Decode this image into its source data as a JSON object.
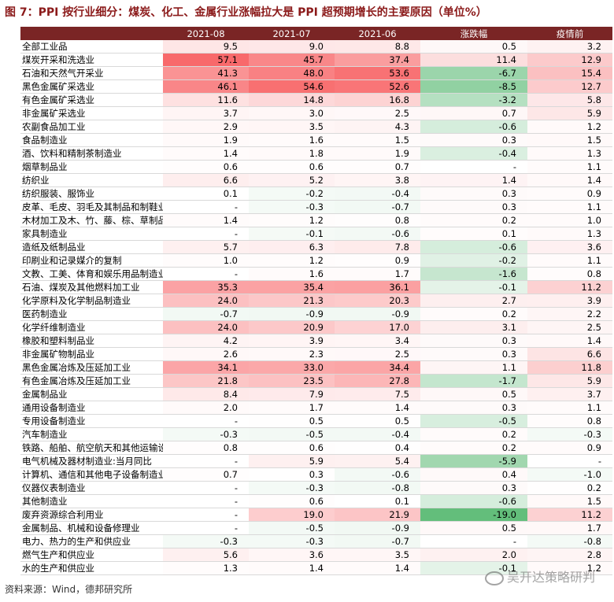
{
  "title": "图 7：PPI 按行业细分：煤炭、化工、金属行业涨幅拉大是 PPI 超预期增长的主要原因（单位%）",
  "source_note": "资料来源：Wind，德邦研究所",
  "watermark": "吴开达策略研判",
  "chart_data": {
    "type": "table",
    "columns": [
      "",
      "2021-08",
      "2021-07",
      "2021-06",
      "涨跌幅",
      "疫情前"
    ],
    "rows": [
      [
        "全部工业品",
        "9.5",
        "9.0",
        "8.8",
        "0.5",
        "3.2"
      ],
      [
        "煤炭开采和洗选业",
        "57.1",
        "45.7",
        "37.4",
        "11.4",
        "12.9"
      ],
      [
        "石油和天然气开采业",
        "41.3",
        "48.0",
        "53.6",
        "-6.7",
        "15.4"
      ],
      [
        "黑色金属矿采选业",
        "46.1",
        "54.6",
        "52.6",
        "-8.5",
        "12.7"
      ],
      [
        "有色金属矿采选业",
        "11.6",
        "14.8",
        "16.8",
        "-3.2",
        "5.8"
      ],
      [
        "非金属矿采选业",
        "3.7",
        "3.0",
        "2.5",
        "0.7",
        "5.9"
      ],
      [
        "农副食品加工业",
        "2.9",
        "3.5",
        "4.3",
        "-0.6",
        "1.2"
      ],
      [
        "食品制造业",
        "1.9",
        "1.6",
        "1.5",
        "0.3",
        "1.5"
      ],
      [
        "酒、饮料和精制茶制造业",
        "1.4",
        "1.8",
        "1.9",
        "-0.4",
        "1.3"
      ],
      [
        "烟草制品业",
        "0.6",
        "0.6",
        "0.7",
        "-",
        "1.1"
      ],
      [
        "纺织业",
        "6.6",
        "5.2",
        "3.8",
        "1.4",
        "1.4"
      ],
      [
        "纺织服装、服饰业",
        "0.1",
        "-0.2",
        "-0.4",
        "0.3",
        "0.9"
      ],
      [
        "皮革、毛皮、羽毛及其制品和制鞋业",
        "-",
        "-0.3",
        "-0.7",
        "0.3",
        "1.1"
      ],
      [
        "木材加工及木、竹、藤、棕、草制品业",
        "1.4",
        "1.2",
        "0.8",
        "0.2",
        "1.0"
      ],
      [
        "家具制造业",
        "-",
        "-0.1",
        "-0.6",
        "0.1",
        "1.3"
      ],
      [
        "造纸及纸制品业",
        "5.7",
        "6.3",
        "7.8",
        "-0.6",
        "3.6"
      ],
      [
        "印刷业和记录媒介的复制",
        "1.0",
        "1.2",
        "0.9",
        "-0.2",
        "1.1"
      ],
      [
        "文教、工美、体育和娱乐用品制造业",
        "-",
        "1.6",
        "1.7",
        "-1.6",
        "0.8"
      ],
      [
        "石油、煤炭及其他燃料加工业",
        "35.3",
        "35.4",
        "36.1",
        "-0.1",
        "11.2"
      ],
      [
        "化学原料及化学制品制造业",
        "24.0",
        "21.3",
        "20.3",
        "2.7",
        "3.9"
      ],
      [
        "医药制造业",
        "-0.7",
        "-0.9",
        "-0.9",
        "0.2",
        "2.2"
      ],
      [
        "化学纤维制造业",
        "24.0",
        "20.9",
        "17.0",
        "3.1",
        "2.5"
      ],
      [
        "橡胶和塑料制品业",
        "4.2",
        "3.9",
        "3.4",
        "0.3",
        "1.4"
      ],
      [
        "非金属矿物制品业",
        "2.6",
        "2.3",
        "2.5",
        "0.3",
        "6.6"
      ],
      [
        "黑色金属冶炼及压延加工业",
        "34.1",
        "33.0",
        "34.4",
        "1.1",
        "11.8"
      ],
      [
        "有色金属冶炼及压延加工业",
        "21.8",
        "23.5",
        "27.8",
        "-1.7",
        "5.9"
      ],
      [
        "金属制品业",
        "8.4",
        "7.9",
        "7.5",
        "0.5",
        "3.7"
      ],
      [
        "通用设备制造业",
        "2.0",
        "1.7",
        "1.4",
        "0.3",
        "1.1"
      ],
      [
        "专用设备制造业",
        "-",
        "0.5",
        "0.5",
        "-0.5",
        "0.8"
      ],
      [
        "汽车制造业",
        "-0.3",
        "-0.5",
        "-0.4",
        "0.2",
        "-0.3"
      ],
      [
        "铁路、船舶、航空航天和其他运输设备制造业",
        "0.8",
        "0.6",
        "0.4",
        "0.2",
        "0.9"
      ],
      [
        "电气机械及器材制造业:当月同比",
        "-",
        "5.9",
        "5.4",
        "-5.9",
        "-"
      ],
      [
        "计算机、通信和其他电子设备制造业",
        "0.7",
        "0.3",
        "-0.6",
        "0.4",
        "-1.0"
      ],
      [
        "仪器仪表制造业",
        "-",
        "-0.3",
        "-0.8",
        "0.3",
        "0.2"
      ],
      [
        "其他制造业",
        "-",
        "0.6",
        "0.1",
        "-0.6",
        "1.5"
      ],
      [
        "废弃资源综合利用业",
        "-",
        "19.0",
        "21.9",
        "-19.0",
        "11.2"
      ],
      [
        "金属制品、机械和设备修理业",
        "-",
        "-0.5",
        "-0.9",
        "0.5",
        "1.7"
      ],
      [
        "电力、热力的生产和供应业",
        "-0.3",
        "-0.3",
        "-0.7",
        "-",
        "-0.8"
      ],
      [
        "燃气生产和供应业",
        "5.6",
        "3.6",
        "3.5",
        "2.0",
        "2.8"
      ],
      [
        "水的生产和供应业",
        "1.3",
        "1.4",
        "1.4",
        "-0.1",
        "1.2"
      ]
    ]
  }
}
